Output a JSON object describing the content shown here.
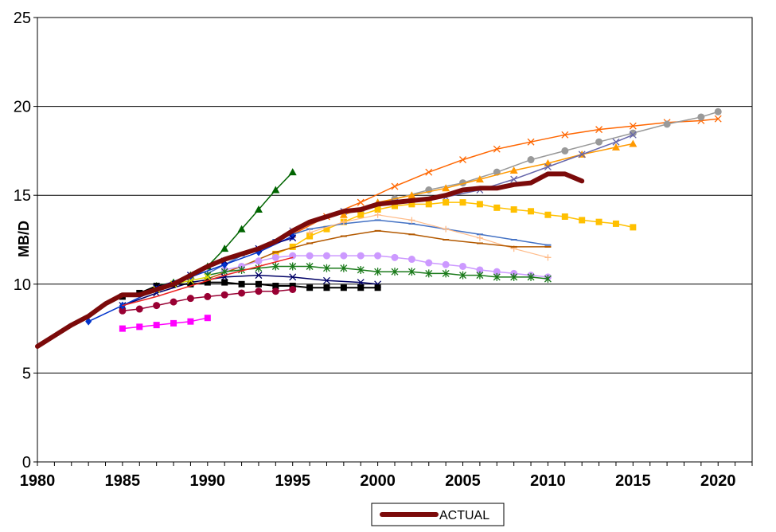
{
  "chart_data": {
    "type": "line",
    "title": "",
    "xlabel": "",
    "ylabel": "MB/D",
    "xlim": [
      1980,
      2022
    ],
    "ylim": [
      0,
      25
    ],
    "x_ticks": [
      1980,
      1985,
      1990,
      1995,
      2000,
      2005,
      2010,
      2015,
      2020
    ],
    "y_ticks": [
      0,
      5,
      10,
      15,
      20,
      25
    ],
    "grid": "horizontal",
    "legend_position": "bottom-center",
    "legend_entries": [
      "ACTUAL"
    ],
    "series": [
      {
        "name": "ACTUAL",
        "color": "#7b0a0a",
        "width": 6,
        "marker": "none",
        "x": [
          1980,
          1981,
          1982,
          1983,
          1984,
          1985,
          1986,
          1987,
          1988,
          1989,
          1990,
          1991,
          1992,
          1993,
          1994,
          1995,
          1996,
          1997,
          1998,
          1999,
          2000,
          2001,
          2002,
          2003,
          2004,
          2005,
          2006,
          2007,
          2008,
          2009,
          2010,
          2011,
          2012
        ],
        "y": [
          6.5,
          7.1,
          7.7,
          8.2,
          8.9,
          9.4,
          9.4,
          9.7,
          10.0,
          10.5,
          11.0,
          11.4,
          11.7,
          12.0,
          12.4,
          13.0,
          13.5,
          13.8,
          14.1,
          14.2,
          14.5,
          14.6,
          14.7,
          14.8,
          15.0,
          15.3,
          15.4,
          15.4,
          15.6,
          15.7,
          16.2,
          16.2,
          15.8
        ]
      },
      {
        "color": "#006400",
        "width": 1.5,
        "marker": "triangle",
        "x": [
          1987,
          1988,
          1989,
          1990,
          1991,
          1992,
          1993,
          1994,
          1995
        ],
        "y": [
          9.9,
          10.1,
          10.5,
          11.0,
          12.0,
          13.1,
          14.2,
          15.3,
          16.3
        ]
      },
      {
        "color": "#ff6600",
        "width": 1.5,
        "marker": "x",
        "x": [
          1995,
          1997,
          1999,
          2001,
          2003,
          2005,
          2007,
          2009,
          2011,
          2013,
          2015,
          2017,
          2019,
          2020
        ],
        "y": [
          12.8,
          13.8,
          14.6,
          15.5,
          16.3,
          17.0,
          17.6,
          18.0,
          18.4,
          18.7,
          18.9,
          19.1,
          19.2,
          19.3
        ]
      },
      {
        "color": "#999999",
        "width": 1.5,
        "marker": "circle",
        "x": [
          1999,
          2001,
          2003,
          2005,
          2007,
          2009,
          2011,
          2013,
          2015,
          2017,
          2019,
          2020
        ],
        "y": [
          14.1,
          14.8,
          15.3,
          15.7,
          16.3,
          17.0,
          17.5,
          18.0,
          18.5,
          19.0,
          19.4,
          19.7
        ]
      },
      {
        "color": "#ff9900",
        "width": 1.5,
        "marker": "triangle",
        "x": [
          1998,
          2000,
          2002,
          2004,
          2006,
          2008,
          2010,
          2012,
          2014,
          2015
        ],
        "y": [
          13.9,
          14.6,
          15.0,
          15.4,
          15.9,
          16.4,
          16.8,
          17.3,
          17.7,
          17.9
        ]
      },
      {
        "color": "#6666aa",
        "width": 1.5,
        "marker": "x",
        "x": [
          1995,
          1998,
          2001,
          2004,
          2006,
          2008,
          2010,
          2012,
          2014,
          2015
        ],
        "y": [
          13.0,
          14.1,
          14.6,
          14.9,
          15.3,
          15.9,
          16.6,
          17.3,
          18.0,
          18.4
        ]
      },
      {
        "color": "#ffc000",
        "width": 1.5,
        "marker": "square",
        "x": [
          1994,
          1995,
          1996,
          1997,
          1998,
          1999,
          2000,
          2001,
          2002,
          2003,
          2004,
          2005,
          2006,
          2007,
          2008,
          2009,
          2010,
          2011,
          2012,
          2013,
          2014,
          2015
        ],
        "y": [
          11.7,
          12.1,
          12.7,
          13.1,
          13.5,
          13.9,
          14.2,
          14.4,
          14.5,
          14.5,
          14.6,
          14.6,
          14.5,
          14.3,
          14.2,
          14.1,
          13.9,
          13.8,
          13.6,
          13.5,
          13.4,
          13.2
        ]
      },
      {
        "color": "#4472c4",
        "width": 1.5,
        "marker": "dash",
        "x": [
          1990,
          1992,
          1994,
          1996,
          1998,
          2000,
          2002,
          2004,
          2006,
          2008,
          2010
        ],
        "y": [
          10.6,
          11.6,
          12.5,
          13.1,
          13.4,
          13.6,
          13.4,
          13.1,
          12.8,
          12.5,
          12.2
        ]
      },
      {
        "color": "#ffbb88",
        "width": 1.2,
        "marker": "plus",
        "x": [
          1996,
          1998,
          2000,
          2002,
          2004,
          2006,
          2008,
          2010
        ],
        "y": [
          12.9,
          13.5,
          13.9,
          13.6,
          13.1,
          12.6,
          12.0,
          11.5
        ]
      },
      {
        "color": "#b35900",
        "width": 1.5,
        "marker": "dash",
        "x": [
          1990,
          1992,
          1994,
          1996,
          1998,
          2000,
          2002,
          2004,
          2006,
          2008,
          2010
        ],
        "y": [
          10.3,
          11.0,
          11.8,
          12.3,
          12.7,
          13.0,
          12.8,
          12.5,
          12.3,
          12.1,
          12.1
        ]
      },
      {
        "color": "#cc99ff",
        "width": 1.5,
        "marker": "circle",
        "x": [
          1991,
          1992,
          1993,
          1994,
          1995,
          1996,
          1997,
          1998,
          1999,
          2000,
          2001,
          2002,
          2003,
          2004,
          2005,
          2006,
          2007,
          2008,
          2009,
          2010
        ],
        "y": [
          10.8,
          11.0,
          11.3,
          11.5,
          11.6,
          11.6,
          11.6,
          11.6,
          11.6,
          11.6,
          11.5,
          11.4,
          11.2,
          11.1,
          11.0,
          10.8,
          10.7,
          10.6,
          10.5,
          10.4
        ]
      },
      {
        "color": "#1a7a1a",
        "width": 1.5,
        "marker": "star",
        "x": [
          1990,
          1991,
          1992,
          1993,
          1994,
          1995,
          1996,
          1997,
          1998,
          1999,
          2000,
          2001,
          2002,
          2003,
          2004,
          2005,
          2006,
          2007,
          2008,
          2009,
          2010
        ],
        "y": [
          10.5,
          10.7,
          10.8,
          10.9,
          11.0,
          11.0,
          11.0,
          10.9,
          10.9,
          10.8,
          10.7,
          10.7,
          10.7,
          10.6,
          10.6,
          10.5,
          10.5,
          10.4,
          10.4,
          10.4,
          10.3
        ]
      },
      {
        "color": "#000066",
        "width": 1.5,
        "marker": "x",
        "x": [
          1985,
          1987,
          1989,
          1991,
          1993,
          1995,
          1997,
          1999,
          2000
        ],
        "y": [
          8.8,
          9.5,
          10.1,
          10.4,
          10.5,
          10.4,
          10.2,
          10.1,
          10.0
        ]
      },
      {
        "color": "#000000",
        "width": 2,
        "marker": "square",
        "x": [
          1985,
          1986,
          1987,
          1988,
          1989,
          1990,
          1991,
          1992,
          1993,
          1994,
          1995,
          1996,
          1997,
          1998,
          1999,
          2000
        ],
        "y": [
          9.3,
          9.5,
          9.9,
          10.0,
          10.0,
          10.1,
          10.1,
          10.0,
          10.0,
          9.9,
          9.9,
          9.8,
          9.8,
          9.8,
          9.8,
          9.8
        ]
      },
      {
        "color": "#990033",
        "width": 1.5,
        "marker": "circle",
        "x": [
          1985,
          1986,
          1987,
          1988,
          1989,
          1990,
          1991,
          1992,
          1993,
          1994,
          1995
        ],
        "y": [
          8.5,
          8.6,
          8.8,
          9.0,
          9.2,
          9.3,
          9.4,
          9.5,
          9.6,
          9.6,
          9.7
        ]
      },
      {
        "color": "#ff00ff",
        "width": 1.5,
        "marker": "square",
        "x": [
          1985,
          1986,
          1987,
          1988,
          1989,
          1990
        ],
        "y": [
          7.5,
          7.6,
          7.7,
          7.8,
          7.9,
          8.1
        ]
      },
      {
        "color": "#0033cc",
        "width": 1.5,
        "marker": "diamond",
        "x": [
          1983,
          1985,
          1987,
          1989,
          1991,
          1993,
          1995
        ],
        "y": [
          7.9,
          8.8,
          9.7,
          10.4,
          11.1,
          11.8,
          12.7
        ]
      },
      {
        "color": "#000080",
        "width": 1.5,
        "marker": "x",
        "x": [
          1987,
          1989,
          1991,
          1993,
          1995
        ],
        "y": [
          9.8,
          10.5,
          11.3,
          12.0,
          12.6
        ]
      },
      {
        "color": "#ee2222",
        "width": 1.5,
        "marker": "none",
        "x": [
          1985,
          1987,
          1989,
          1991,
          1993,
          1995
        ],
        "y": [
          8.8,
          9.3,
          9.9,
          10.5,
          11.0,
          11.5
        ]
      },
      {
        "color": "#dddd00",
        "width": 1.5,
        "marker": "x",
        "x": [
          1987,
          1988,
          1989,
          1990
        ],
        "y": [
          9.7,
          10.0,
          10.2,
          10.4
        ]
      }
    ]
  }
}
